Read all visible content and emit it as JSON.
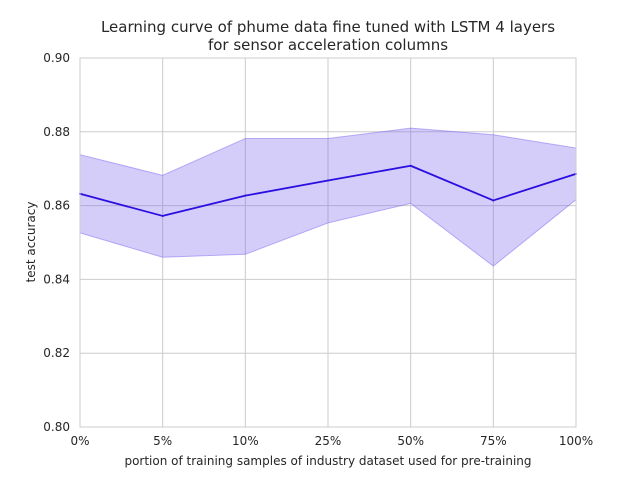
{
  "chart_data": {
    "type": "line",
    "title_line1": "Learning curve of phume data fine tuned with LSTM 4 layers",
    "title_line2": "for sensor acceleration columns",
    "xlabel": "portion of training samples of industry dataset used for pre-training",
    "ylabel": "test accuracy",
    "categories": [
      "0%",
      "5%",
      "10%",
      "25%",
      "50%",
      "75%",
      "100%"
    ],
    "ylim": [
      0.8,
      0.9
    ],
    "yticks": [
      0.8,
      0.82,
      0.84,
      0.86,
      0.88,
      0.9
    ],
    "ytick_labels": [
      "0.80",
      "0.82",
      "0.84",
      "0.86",
      "0.88",
      "0.90"
    ],
    "grid": true,
    "series": [
      {
        "values": [
          0.8632,
          0.8572,
          0.8627,
          0.8668,
          0.8708,
          0.8614,
          0.8686
        ],
        "band_upper": [
          0.8738,
          0.8682,
          0.8782,
          0.8782,
          0.881,
          0.8792,
          0.8756
        ],
        "band_lower": [
          0.8526,
          0.846,
          0.8468,
          0.8553,
          0.8606,
          0.8436,
          0.8616
        ]
      }
    ],
    "colors": {
      "line": "#2a0fe0",
      "band": "#6f5af0",
      "band_opacity": 0.3,
      "grid": "#cccccc",
      "spine": "#cccccc"
    }
  }
}
